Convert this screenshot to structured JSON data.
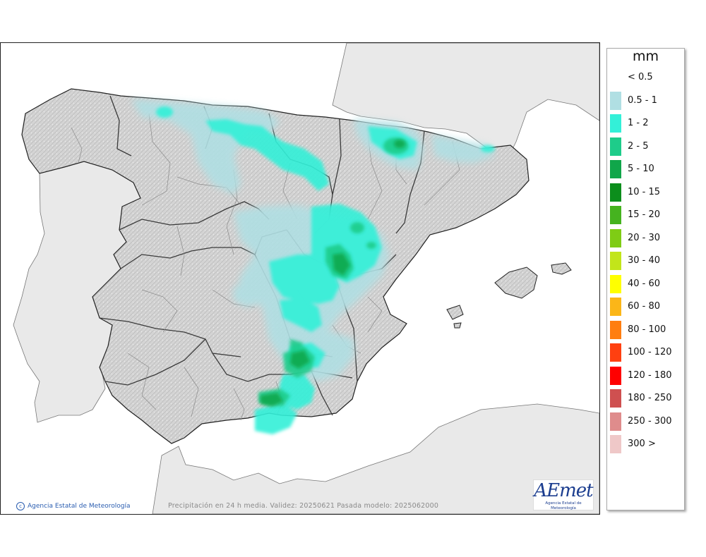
{
  "legend": {
    "unit": "mm",
    "items": [
      {
        "label": "< 0.5",
        "color": ""
      },
      {
        "label": "0.5 - 1",
        "color": "#b0dfe3"
      },
      {
        "label": "1 - 2",
        "color": "#33f0d8"
      },
      {
        "label": "2 - 5",
        "color": "#1ecc8a"
      },
      {
        "label": "5 - 10",
        "color": "#10a64a"
      },
      {
        "label": "10 - 15",
        "color": "#0c8e1c"
      },
      {
        "label": "15 - 20",
        "color": "#45b31f"
      },
      {
        "label": "20 - 30",
        "color": "#7fcc15"
      },
      {
        "label": "30 - 40",
        "color": "#c2e51a"
      },
      {
        "label": "40 - 60",
        "color": "#ffff00"
      },
      {
        "label": "60 - 80",
        "color": "#fbb618"
      },
      {
        "label": "80 - 100",
        "color": "#ff7e10"
      },
      {
        "label": "100 - 120",
        "color": "#ff4010"
      },
      {
        "label": "120 - 180",
        "color": "#ff0000"
      },
      {
        "label": "180 - 250",
        "color": "#cf5050"
      },
      {
        "label": "250 - 300",
        "color": "#df8c8c"
      },
      {
        "label": "300 >",
        "color": "#efc8c8"
      }
    ]
  },
  "map": {
    "credit": "Agencia Estatal de Meteorología",
    "validity": "Precipitación en 24 h media. Validez: 20250621 Pasada modelo: 2025062000",
    "logo_text": "AEmet",
    "logo_subtext": "Agencia Estatal de Meteorología",
    "colors": {
      "sea": "#ffffff",
      "land_other": "#e9e9e9",
      "land_spain": "#d2d2d2",
      "border": "#333333"
    }
  }
}
